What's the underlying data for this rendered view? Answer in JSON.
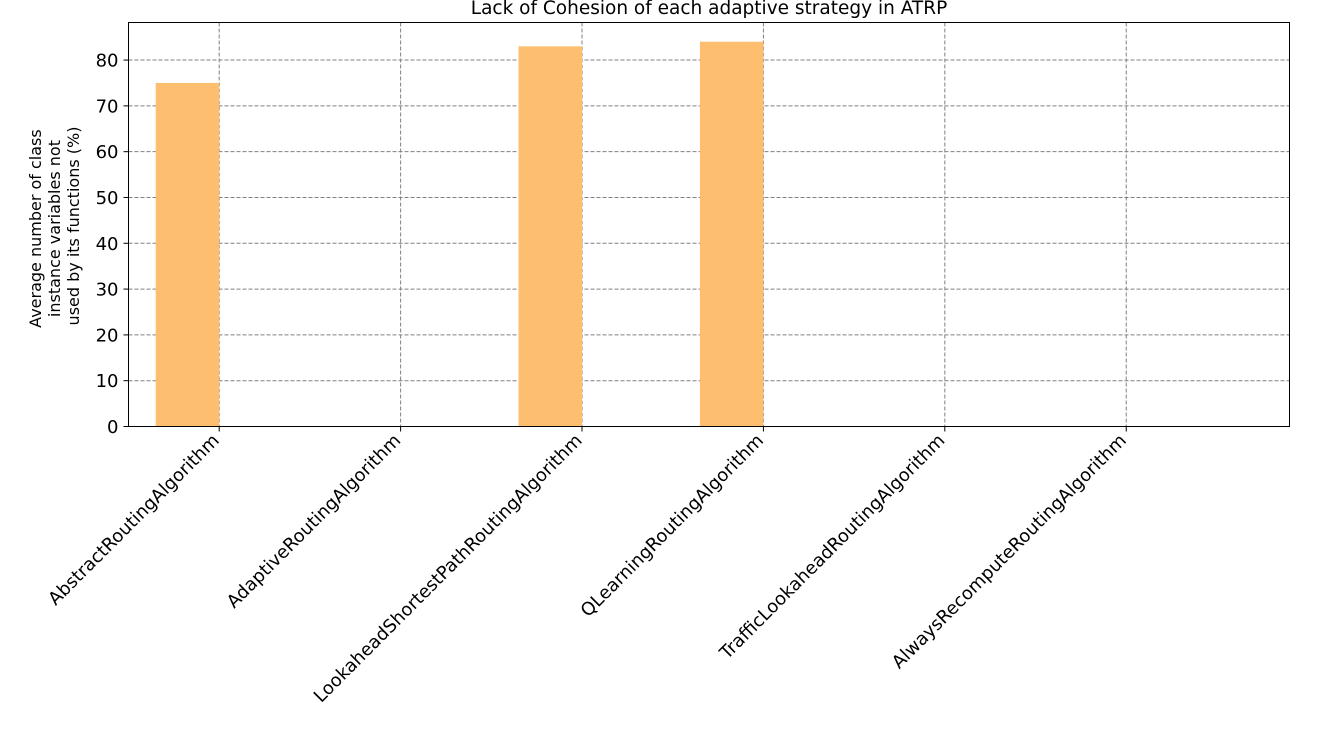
{
  "chart_data": {
    "type": "bar",
    "title": "Lack of Cohesion of each adaptive strategy in ATRP",
    "xlabel": "",
    "ylabel": [
      "Average number of class",
      "instance variables not",
      "used by its functions (%)"
    ],
    "categories": [
      "AbstractRoutingAlgorithm",
      "AdaptiveRoutingAlgorithm",
      "LookaheadShortestPathRoutingAlgorithm",
      "QLearningRoutingAlgorithm",
      "TrafficLookaheadRoutingAlgorithm",
      "AlwaysRecomputeRoutingAlgorithm"
    ],
    "values": [
      75,
      0,
      83,
      84,
      0,
      0
    ],
    "yticks": [
      0,
      10,
      20,
      30,
      40,
      50,
      60,
      70,
      80
    ],
    "ylim": [
      0,
      88.2
    ],
    "grid": true,
    "bar_color": "#fdbf6f",
    "grid_color": "#808080"
  }
}
